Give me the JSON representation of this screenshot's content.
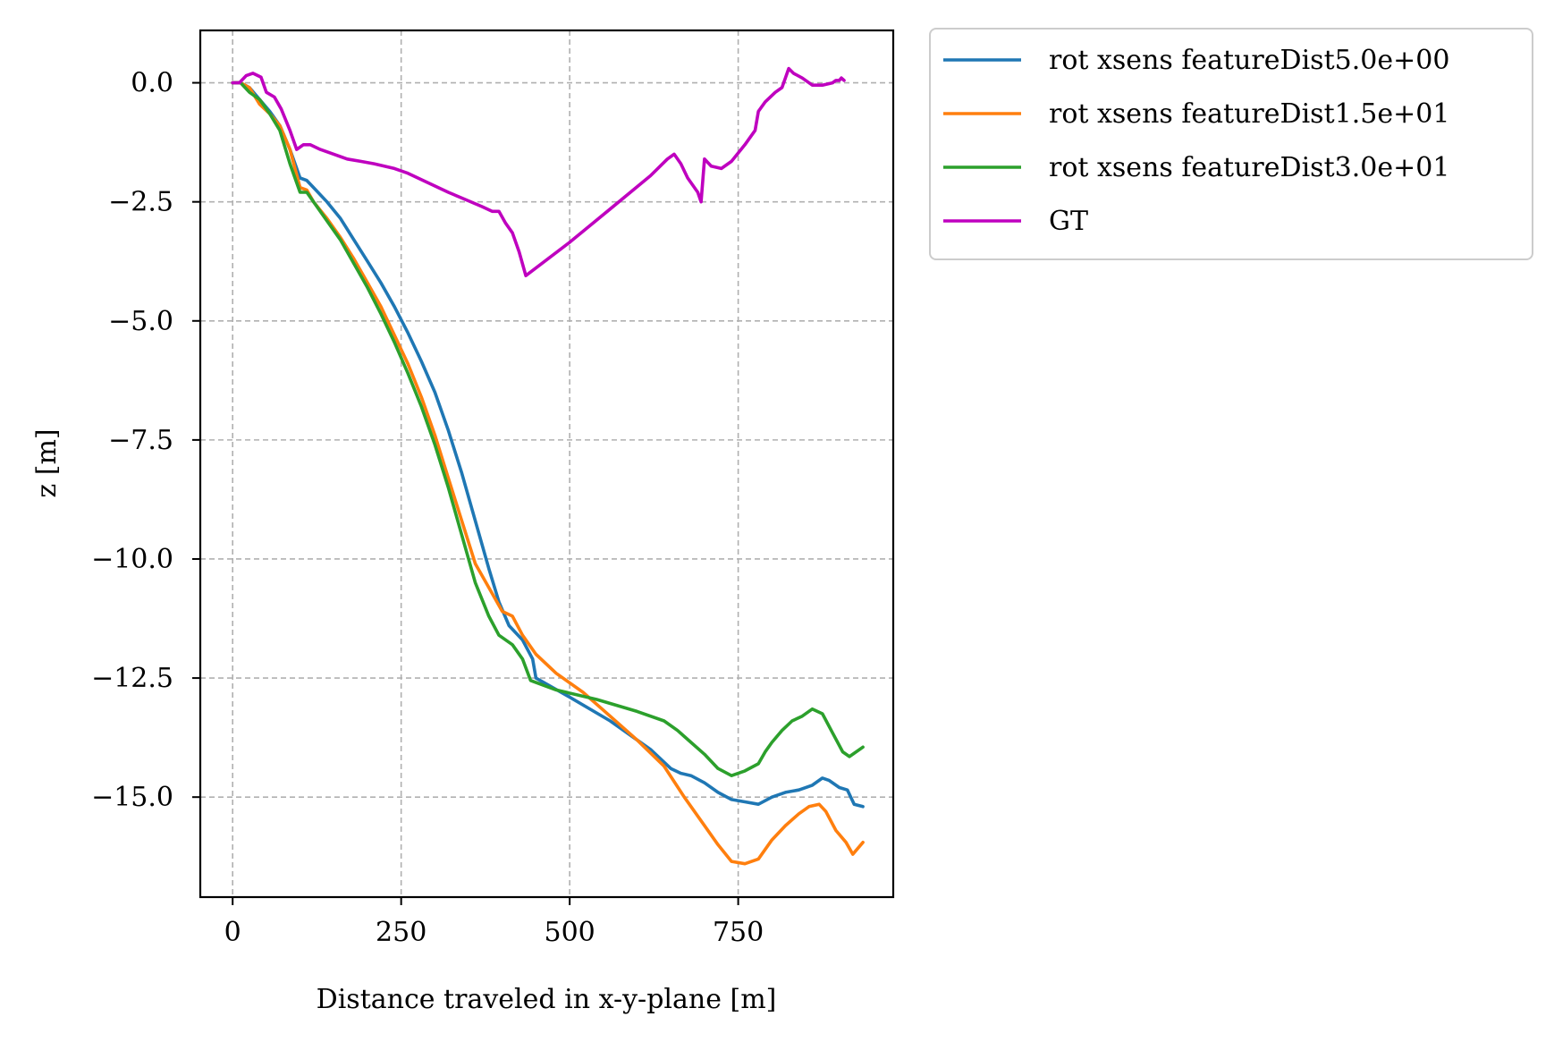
{
  "chart_data": {
    "type": "line",
    "xlabel": "Distance traveled in x-y-plane [m]",
    "ylabel": "z [m]",
    "xlim": [
      -48,
      980
    ],
    "ylim": [
      -17.1,
      1.1
    ],
    "x_ticks": [
      0,
      250,
      500,
      750
    ],
    "x_tick_labels": [
      "0",
      "250",
      "500",
      "750"
    ],
    "y_ticks": [
      0.0,
      -2.5,
      -5.0,
      -7.5,
      -10.0,
      -12.5,
      -15.0
    ],
    "y_tick_labels": [
      "0.0",
      "−2.5",
      "−5.0",
      "−7.5",
      "−10.0",
      "−12.5",
      "−15.0"
    ],
    "grid": true,
    "legend_position": "outside-upper-right",
    "series": [
      {
        "name": "rot xsens featureDist5.0e+00",
        "color": "#1f77b4",
        "points": [
          [
            0,
            0
          ],
          [
            12,
            0
          ],
          [
            25,
            -0.1
          ],
          [
            40,
            -0.35
          ],
          [
            55,
            -0.6
          ],
          [
            70,
            -0.9
          ],
          [
            85,
            -1.4
          ],
          [
            100,
            -2.0
          ],
          [
            110,
            -2.05
          ],
          [
            120,
            -2.2
          ],
          [
            140,
            -2.5
          ],
          [
            160,
            -2.85
          ],
          [
            180,
            -3.3
          ],
          [
            200,
            -3.75
          ],
          [
            220,
            -4.2
          ],
          [
            240,
            -4.7
          ],
          [
            260,
            -5.25
          ],
          [
            280,
            -5.85
          ],
          [
            300,
            -6.5
          ],
          [
            320,
            -7.3
          ],
          [
            340,
            -8.2
          ],
          [
            360,
            -9.2
          ],
          [
            380,
            -10.2
          ],
          [
            395,
            -10.9
          ],
          [
            410,
            -11.4
          ],
          [
            430,
            -11.7
          ],
          [
            445,
            -12.1
          ],
          [
            450,
            -12.5
          ],
          [
            500,
            -12.9
          ],
          [
            560,
            -13.4
          ],
          [
            620,
            -14.0
          ],
          [
            650,
            -14.4
          ],
          [
            665,
            -14.5
          ],
          [
            680,
            -14.55
          ],
          [
            700,
            -14.7
          ],
          [
            720,
            -14.9
          ],
          [
            740,
            -15.05
          ],
          [
            760,
            -15.1
          ],
          [
            780,
            -15.15
          ],
          [
            800,
            -15.0
          ],
          [
            820,
            -14.9
          ],
          [
            840,
            -14.85
          ],
          [
            860,
            -14.75
          ],
          [
            875,
            -14.6
          ],
          [
            885,
            -14.65
          ],
          [
            900,
            -14.8
          ],
          [
            912,
            -14.85
          ],
          [
            922,
            -15.15
          ],
          [
            935,
            -15.2
          ]
        ]
      },
      {
        "name": "rot xsens featureDist1.5e+01",
        "color": "#ff7f0e",
        "points": [
          [
            0,
            0
          ],
          [
            12,
            0
          ],
          [
            25,
            -0.1
          ],
          [
            40,
            -0.45
          ],
          [
            55,
            -0.65
          ],
          [
            70,
            -0.9
          ],
          [
            85,
            -1.4
          ],
          [
            100,
            -2.2
          ],
          [
            110,
            -2.25
          ],
          [
            120,
            -2.5
          ],
          [
            140,
            -2.85
          ],
          [
            160,
            -3.25
          ],
          [
            180,
            -3.7
          ],
          [
            200,
            -4.2
          ],
          [
            220,
            -4.7
          ],
          [
            240,
            -5.3
          ],
          [
            260,
            -5.9
          ],
          [
            280,
            -6.6
          ],
          [
            300,
            -7.4
          ],
          [
            320,
            -8.3
          ],
          [
            340,
            -9.2
          ],
          [
            360,
            -10.1
          ],
          [
            380,
            -10.6
          ],
          [
            400,
            -11.1
          ],
          [
            415,
            -11.2
          ],
          [
            430,
            -11.6
          ],
          [
            450,
            -12.0
          ],
          [
            480,
            -12.4
          ],
          [
            520,
            -12.8
          ],
          [
            560,
            -13.3
          ],
          [
            600,
            -13.8
          ],
          [
            640,
            -14.35
          ],
          [
            670,
            -15.0
          ],
          [
            700,
            -15.6
          ],
          [
            720,
            -16.0
          ],
          [
            740,
            -16.35
          ],
          [
            760,
            -16.4
          ],
          [
            780,
            -16.3
          ],
          [
            800,
            -15.9
          ],
          [
            820,
            -15.6
          ],
          [
            840,
            -15.35
          ],
          [
            855,
            -15.2
          ],
          [
            870,
            -15.15
          ],
          [
            880,
            -15.3
          ],
          [
            895,
            -15.7
          ],
          [
            910,
            -15.95
          ],
          [
            920,
            -16.2
          ],
          [
            935,
            -15.95
          ]
        ]
      },
      {
        "name": "rot xsens featureDist3.0e+01",
        "color": "#2ca02c",
        "points": [
          [
            0,
            0
          ],
          [
            12,
            0
          ],
          [
            25,
            -0.2
          ],
          [
            40,
            -0.35
          ],
          [
            55,
            -0.65
          ],
          [
            70,
            -1.0
          ],
          [
            85,
            -1.7
          ],
          [
            100,
            -2.3
          ],
          [
            110,
            -2.3
          ],
          [
            120,
            -2.5
          ],
          [
            140,
            -2.9
          ],
          [
            160,
            -3.3
          ],
          [
            180,
            -3.8
          ],
          [
            200,
            -4.3
          ],
          [
            220,
            -4.85
          ],
          [
            240,
            -5.45
          ],
          [
            260,
            -6.1
          ],
          [
            280,
            -6.8
          ],
          [
            300,
            -7.6
          ],
          [
            320,
            -8.5
          ],
          [
            340,
            -9.5
          ],
          [
            360,
            -10.5
          ],
          [
            380,
            -11.2
          ],
          [
            395,
            -11.6
          ],
          [
            415,
            -11.8
          ],
          [
            430,
            -12.1
          ],
          [
            442,
            -12.55
          ],
          [
            480,
            -12.75
          ],
          [
            540,
            -12.95
          ],
          [
            600,
            -13.2
          ],
          [
            640,
            -13.4
          ],
          [
            660,
            -13.6
          ],
          [
            680,
            -13.85
          ],
          [
            700,
            -14.1
          ],
          [
            720,
            -14.4
          ],
          [
            740,
            -14.55
          ],
          [
            760,
            -14.45
          ],
          [
            780,
            -14.3
          ],
          [
            790,
            -14.05
          ],
          [
            800,
            -13.85
          ],
          [
            815,
            -13.6
          ],
          [
            830,
            -13.4
          ],
          [
            845,
            -13.3
          ],
          [
            860,
            -13.15
          ],
          [
            875,
            -13.25
          ],
          [
            890,
            -13.65
          ],
          [
            905,
            -14.05
          ],
          [
            915,
            -14.15
          ],
          [
            935,
            -13.95
          ]
        ]
      },
      {
        "name": "GT",
        "color": "#bf00bf",
        "points": [
          [
            0,
            0
          ],
          [
            10,
            0.0
          ],
          [
            20,
            0.15
          ],
          [
            30,
            0.2
          ],
          [
            42,
            0.12
          ],
          [
            50,
            -0.2
          ],
          [
            62,
            -0.3
          ],
          [
            72,
            -0.55
          ],
          [
            85,
            -1.0
          ],
          [
            95,
            -1.4
          ],
          [
            105,
            -1.3
          ],
          [
            115,
            -1.3
          ],
          [
            130,
            -1.4
          ],
          [
            150,
            -1.5
          ],
          [
            170,
            -1.6
          ],
          [
            190,
            -1.65
          ],
          [
            210,
            -1.7
          ],
          [
            240,
            -1.8
          ],
          [
            260,
            -1.9
          ],
          [
            290,
            -2.1
          ],
          [
            320,
            -2.3
          ],
          [
            345,
            -2.45
          ],
          [
            370,
            -2.6
          ],
          [
            385,
            -2.7
          ],
          [
            395,
            -2.7
          ],
          [
            405,
            -2.95
          ],
          [
            415,
            -3.15
          ],
          [
            425,
            -3.55
          ],
          [
            435,
            -4.05
          ],
          [
            500,
            -3.35
          ],
          [
            560,
            -2.65
          ],
          [
            620,
            -1.95
          ],
          [
            645,
            -1.6
          ],
          [
            655,
            -1.5
          ],
          [
            665,
            -1.7
          ],
          [
            675,
            -2.0
          ],
          [
            690,
            -2.3
          ],
          [
            695,
            -2.5
          ],
          [
            700,
            -1.6
          ],
          [
            710,
            -1.75
          ],
          [
            725,
            -1.8
          ],
          [
            740,
            -1.65
          ],
          [
            760,
            -1.3
          ],
          [
            775,
            -1.0
          ],
          [
            780,
            -0.6
          ],
          [
            790,
            -0.4
          ],
          [
            805,
            -0.2
          ],
          [
            815,
            -0.1
          ],
          [
            820,
            0.1
          ],
          [
            825,
            0.3
          ],
          [
            832,
            0.2
          ],
          [
            845,
            0.1
          ],
          [
            860,
            -0.05
          ],
          [
            875,
            -0.05
          ],
          [
            890,
            0.0
          ],
          [
            895,
            0.05
          ],
          [
            900,
            0.05
          ],
          [
            903,
            0.1
          ],
          [
            907,
            0.05
          ]
        ]
      }
    ]
  }
}
